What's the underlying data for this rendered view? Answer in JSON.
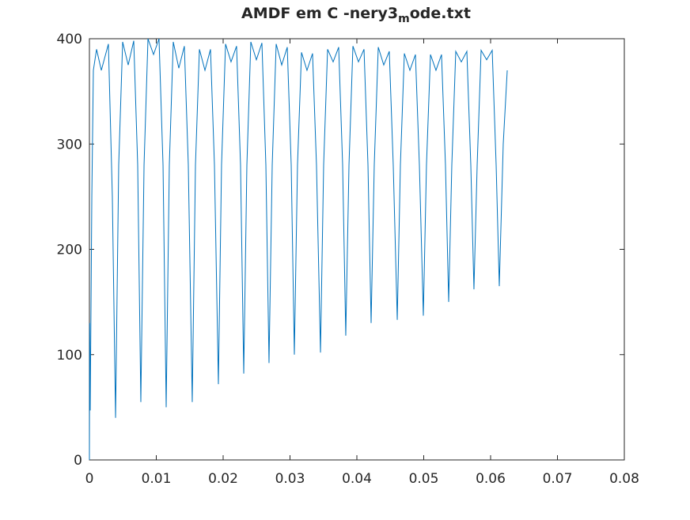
{
  "chart_data": {
    "type": "line",
    "title": "AMDF em C -nery3_mode.txt",
    "xlim": [
      0,
      0.08
    ],
    "xticks": [
      0,
      0.01,
      0.02,
      0.03,
      0.04,
      0.05,
      0.06,
      0.07,
      0.08
    ],
    "ylim": [
      0,
      400
    ],
    "yticks": [
      0,
      100,
      200,
      300,
      400
    ],
    "x": [
      0,
      4e-05,
      0.00012,
      0.00036,
      0.00059,
      0.00107,
      0.00178,
      0.00284,
      0.00343,
      0.00391,
      0.00438,
      0.00497,
      0.0058,
      0.00663,
      0.00722,
      0.00769,
      0.00817,
      0.00876,
      0.00959,
      0.01041,
      0.01101,
      0.01148,
      0.01195,
      0.01254,
      0.01337,
      0.0142,
      0.01479,
      0.01538,
      0.01586,
      0.01645,
      0.01728,
      0.01811,
      0.0187,
      0.01929,
      0.01976,
      0.02036,
      0.02118,
      0.02201,
      0.0226,
      0.02308,
      0.02355,
      0.02414,
      0.02497,
      0.0258,
      0.02639,
      0.02686,
      0.02734,
      0.02793,
      0.02876,
      0.02959,
      0.03018,
      0.03065,
      0.03112,
      0.03172,
      0.03254,
      0.03337,
      0.03396,
      0.03456,
      0.03503,
      0.03562,
      0.03645,
      0.03728,
      0.03787,
      0.03834,
      0.03882,
      0.03941,
      0.04024,
      0.04107,
      0.04166,
      0.04213,
      0.0426,
      0.0432,
      0.04402,
      0.04485,
      0.04544,
      0.04604,
      0.04651,
      0.0471,
      0.04793,
      0.04876,
      0.04935,
      0.04994,
      0.05041,
      0.05101,
      0.05183,
      0.05266,
      0.05325,
      0.05373,
      0.0542,
      0.05479,
      0.05562,
      0.05645,
      0.05704,
      0.05751,
      0.05799,
      0.05858,
      0.05941,
      0.06024,
      0.06083,
      0.0613,
      0.06189,
      0.06249
    ],
    "series": [
      {
        "color": "#0072bd",
        "values": [
          0,
          130,
          47,
          250,
          370,
          390,
          370,
          395,
          250,
          40,
          280,
          397,
          375,
          398,
          280,
          55,
          280,
          400,
          385,
          400,
          280,
          50,
          280,
          397,
          372,
          393,
          280,
          55,
          280,
          390,
          370,
          390,
          280,
          72,
          280,
          395,
          378,
          393,
          280,
          82,
          280,
          397,
          380,
          396,
          280,
          92,
          280,
          395,
          375,
          392,
          280,
          100,
          280,
          387,
          370,
          386,
          280,
          102,
          280,
          390,
          378,
          392,
          280,
          118,
          280,
          393,
          378,
          390,
          280,
          130,
          280,
          392,
          375,
          388,
          280,
          133,
          280,
          386,
          370,
          385,
          280,
          137,
          280,
          385,
          370,
          385,
          280,
          150,
          280,
          388,
          378,
          388,
          280,
          162,
          280,
          389,
          380,
          389,
          280,
          165,
          300,
          370
        ]
      }
    ]
  }
}
